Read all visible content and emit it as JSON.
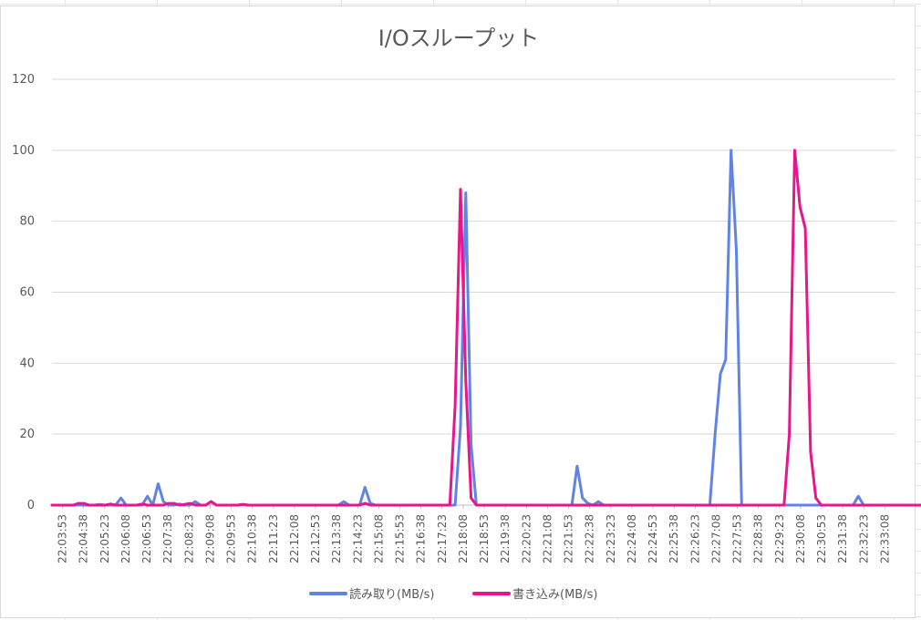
{
  "chart_data": {
    "type": "line",
    "title": "I/Oスループット",
    "xlabel": "",
    "ylabel": "",
    "ylim": [
      0,
      120
    ],
    "yticks": [
      0,
      20,
      40,
      60,
      80,
      100,
      120
    ],
    "grid": "horizontal",
    "legend_position": "bottom",
    "xtick_labels": [
      "22:03:53",
      "22:04:38",
      "22:05:23",
      "22:06:08",
      "22:06:53",
      "22:07:38",
      "22:08:23",
      "22:09:08",
      "22:09:53",
      "22:10:38",
      "22:11:23",
      "22:12:08",
      "22:12:53",
      "22:13:38",
      "22:14:23",
      "22:15:08",
      "22:15:53",
      "22:16:38",
      "22:17:23",
      "22:18:08",
      "22:18:53",
      "22:19:38",
      "22:20:23",
      "22:21:08",
      "22:21:53",
      "22:22:38",
      "22:23:23",
      "22:24:08",
      "22:24:53",
      "22:25:38",
      "22:26:23",
      "22:27:08",
      "22:27:53",
      "22:28:38",
      "22:29:23",
      "22:30:08",
      "22:30:53",
      "22:31:38",
      "22:32:23",
      "22:33:08"
    ],
    "series": [
      {
        "name": "読み取り(MB/s)",
        "color": "#6283E6",
        "values": [
          0,
          0,
          0,
          0,
          0,
          0,
          0,
          0,
          0,
          0.2,
          0,
          0,
          0,
          2,
          0,
          0,
          0,
          0,
          2.5,
          0,
          6,
          1,
          0,
          0,
          0.3,
          0,
          0,
          1,
          0,
          0,
          1,
          0,
          0,
          0,
          0,
          0,
          0.2,
          0,
          0,
          0,
          0,
          0,
          0,
          0,
          0,
          0,
          0,
          0,
          0,
          0,
          0,
          0,
          0,
          0,
          0,
          1,
          0,
          0,
          0,
          5,
          0.5,
          0,
          0,
          0,
          0,
          0,
          0,
          0,
          0,
          0,
          0,
          0,
          0,
          0,
          0,
          0,
          0,
          22,
          88,
          17,
          0,
          0,
          0,
          0,
          0,
          0,
          0,
          0,
          0,
          0,
          0,
          0,
          0,
          0,
          0,
          0,
          0,
          0,
          0,
          11,
          2,
          0.5,
          0,
          1,
          0,
          0,
          0,
          0,
          0,
          0,
          0,
          0,
          0,
          0,
          0,
          0,
          0,
          0,
          0,
          0,
          0,
          0,
          0,
          0,
          0,
          20,
          37,
          41,
          100,
          72,
          0,
          0,
          0,
          0,
          0,
          0,
          0,
          0,
          0,
          0,
          0,
          0,
          0,
          0,
          0,
          0,
          0,
          0,
          0,
          0,
          0,
          0,
          2.5,
          0,
          0,
          0,
          0,
          0,
          0,
          0
        ]
      },
      {
        "name": "書き込み(MB/s)",
        "color": "#E8158C",
        "values": [
          0,
          0,
          0,
          0,
          0,
          0.5,
          0.5,
          0,
          0,
          0,
          0,
          0.3,
          0,
          0,
          0,
          0,
          0,
          0.3,
          0,
          0,
          0,
          0,
          0.5,
          0.5,
          0,
          0.2,
          0.5,
          0,
          0,
          0,
          1,
          0,
          0,
          0,
          0,
          0,
          0.2,
          0,
          0,
          0,
          0,
          0,
          0,
          0,
          0,
          0,
          0,
          0,
          0,
          0,
          0,
          0,
          0,
          0,
          0,
          0,
          0,
          0,
          0,
          0.5,
          0,
          0,
          0,
          0,
          0,
          0,
          0,
          0,
          0,
          0,
          0,
          0,
          0,
          0,
          0,
          0,
          28,
          89,
          35,
          2,
          0,
          0,
          0,
          0,
          0,
          0,
          0,
          0,
          0,
          0,
          0,
          0,
          0,
          0,
          0,
          0,
          0,
          0,
          0,
          0,
          0,
          0,
          0,
          0,
          0,
          0,
          0,
          0,
          0,
          0,
          0,
          0,
          0,
          0,
          0,
          0,
          0,
          0,
          0,
          0,
          0,
          0,
          0,
          0,
          0,
          0,
          0,
          0,
          0,
          0,
          0,
          0,
          0,
          0,
          0,
          0,
          0,
          0,
          0,
          20,
          100,
          84,
          78,
          15,
          2,
          0,
          0,
          0,
          0,
          0,
          0,
          0,
          0,
          0,
          0,
          0,
          0,
          0,
          0,
          0,
          0,
          0,
          0,
          0,
          0,
          0,
          0,
          0
        ]
      }
    ]
  }
}
